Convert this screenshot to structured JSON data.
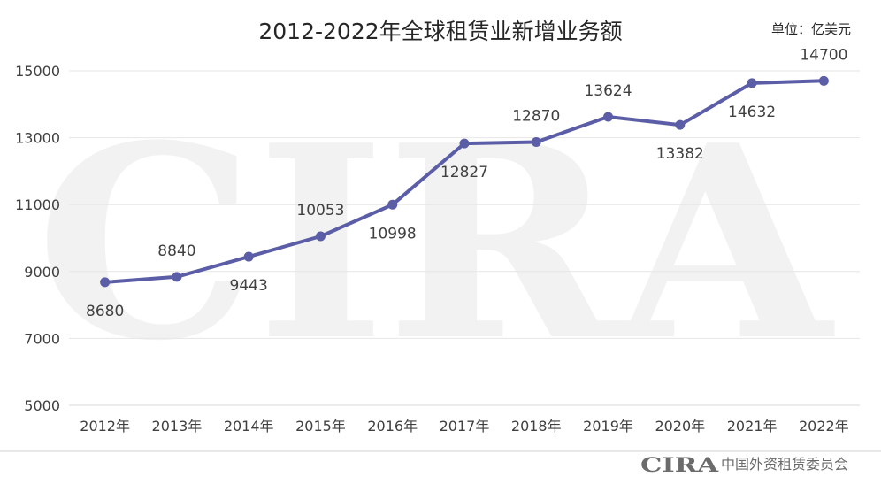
{
  "footer": {
    "logo_text": "CIRA",
    "org_name": "中国外资租赁委员会"
  },
  "chart_data": {
    "type": "line",
    "title": "2012-2022年全球租赁业新增业务额",
    "unit_label": "单位：亿美元",
    "categories": [
      "2012年",
      "2013年",
      "2014年",
      "2015年",
      "2016年",
      "2017年",
      "2018年",
      "2019年",
      "2020年",
      "2021年",
      "2022年"
    ],
    "series": [
      {
        "values": [
          8680,
          8840,
          9443,
          10053,
          10998,
          12827,
          12870,
          13624,
          13382,
          14632,
          14700
        ],
        "color": "#5B5EA6"
      }
    ],
    "data_labels": [
      "8680",
      "8840",
      "9443",
      "10053",
      "10998",
      "12827",
      "12870",
      "13624",
      "13382",
      "14632",
      "14700"
    ],
    "y_ticks": [
      "5000",
      "7000",
      "9000",
      "11000",
      "13000",
      "15000"
    ],
    "ylim": [
      5000,
      15000
    ],
    "grid": true,
    "watermark": "CIRA",
    "colors": {
      "line": "#5B5EA6",
      "grid": "#e6e6e6",
      "text": "#404040",
      "watermark": "#f2f2f2"
    }
  }
}
